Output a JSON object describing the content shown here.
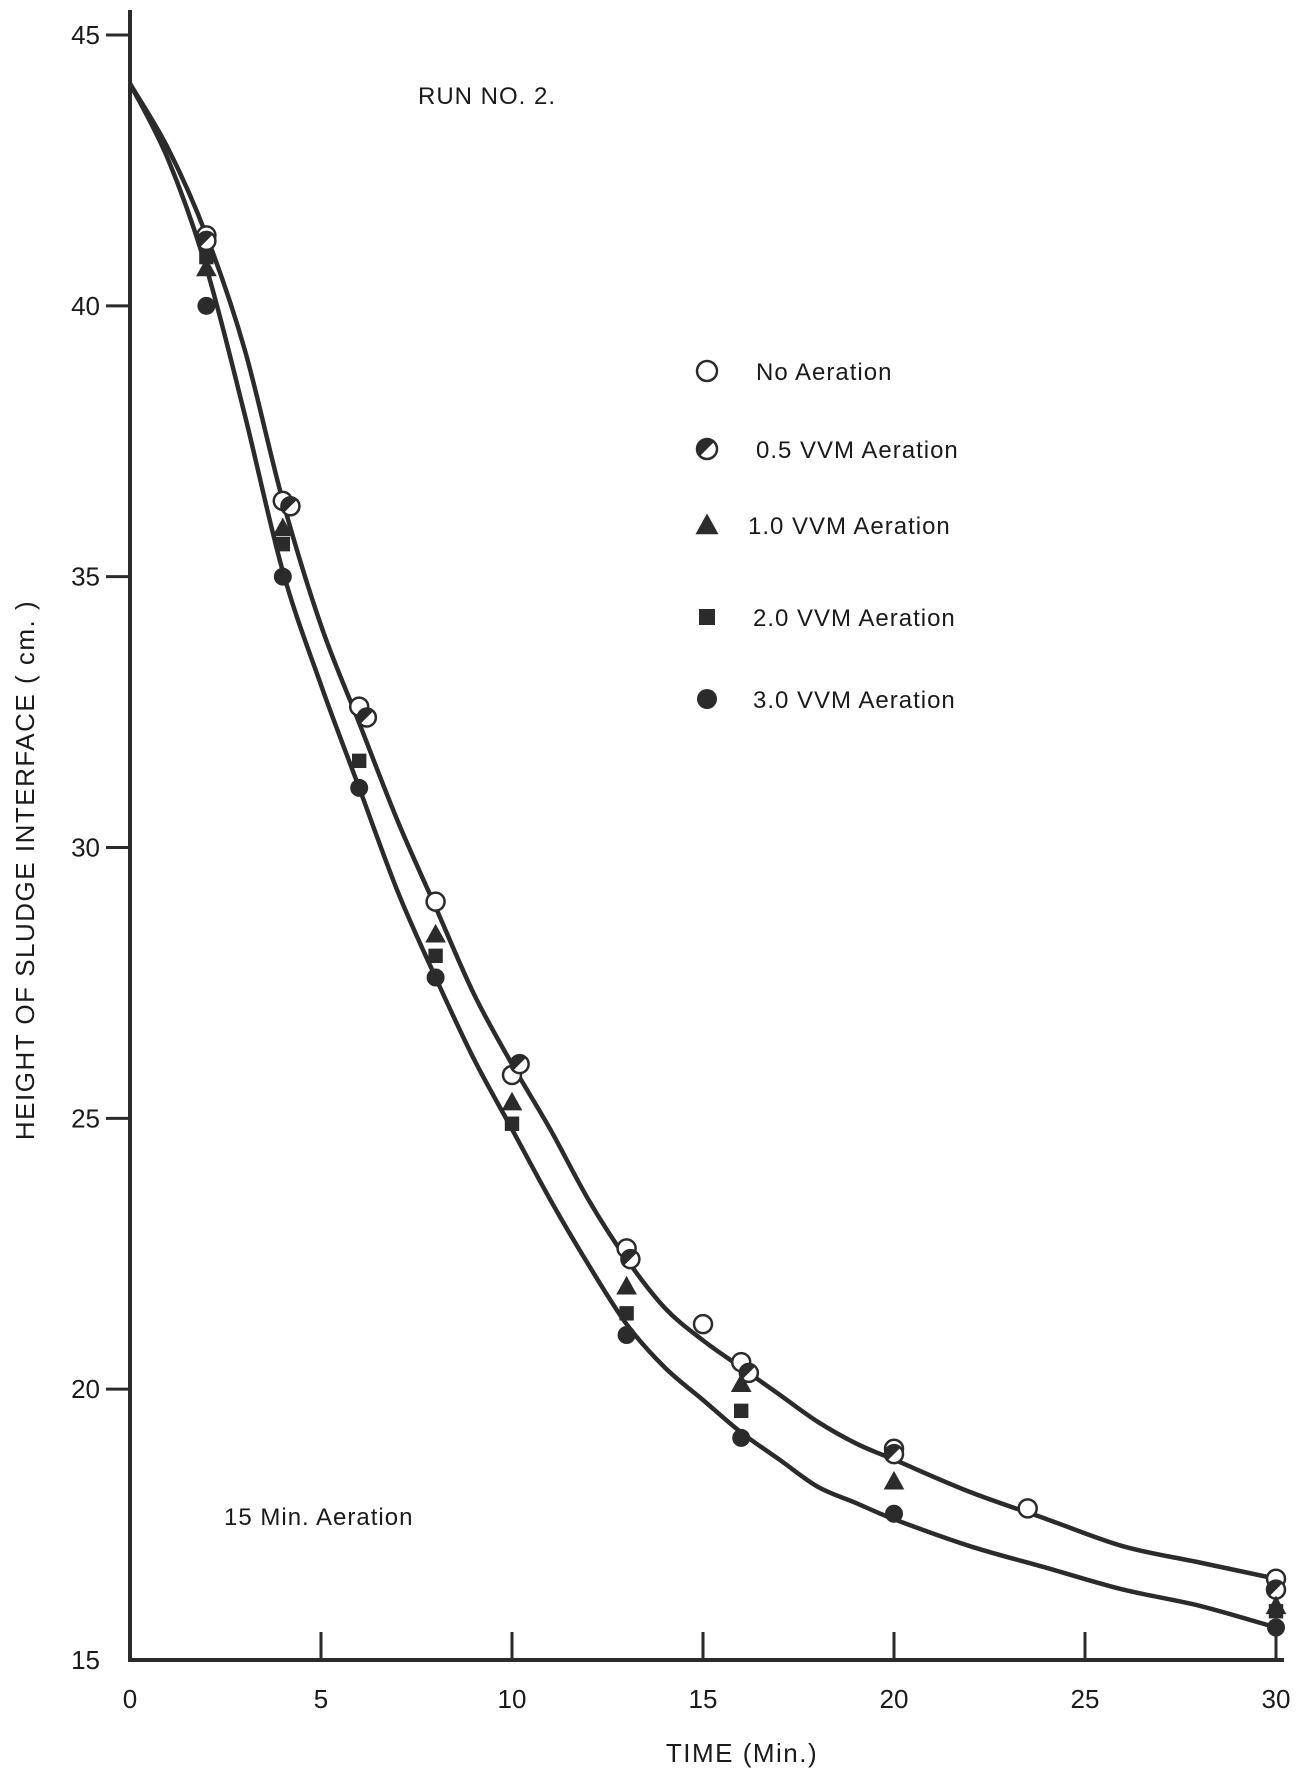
{
  "chart_data": {
    "type": "scatter",
    "title": "RUN NO. 2.",
    "annotation": "15 Min. Aeration",
    "xlabel": "TIME (Min.)",
    "ylabel": "HEIGHT OF SLUDGE INTERFACE ( cm. )",
    "xlim": [
      0,
      30
    ],
    "ylim": [
      15,
      45
    ],
    "x_ticks": [
      0,
      5,
      10,
      15,
      20,
      25,
      30
    ],
    "y_ticks": [
      15,
      20,
      25,
      30,
      35,
      40,
      45
    ],
    "grid": false,
    "legend_position": "right",
    "colors": {
      "ink": "#2b2b2b",
      "background": "#ffffff"
    },
    "series": [
      {
        "name": "No Aeration",
        "marker": "open-circle",
        "x": [
          2,
          4,
          6,
          8,
          10,
          13,
          15,
          16,
          20,
          23.5,
          30
        ],
        "y": [
          41.3,
          36.4,
          32.6,
          29.0,
          25.8,
          22.6,
          21.2,
          20.5,
          18.9,
          17.8,
          16.5
        ]
      },
      {
        "name": "0.5 VVM Aeration",
        "marker": "half-filled-circle",
        "x": [
          2,
          4.2,
          6.2,
          10.2,
          13.1,
          16.2,
          20,
          30
        ],
        "y": [
          41.2,
          36.3,
          32.4,
          26.0,
          22.4,
          20.3,
          18.8,
          16.3
        ]
      },
      {
        "name": "1.0 VVM Aeration",
        "marker": "filled-triangle",
        "x": [
          2,
          4,
          8,
          10,
          13,
          16,
          20,
          30
        ],
        "y": [
          40.7,
          35.9,
          28.4,
          25.3,
          21.9,
          20.1,
          18.3,
          16.0
        ]
      },
      {
        "name": "2.0 VVM Aeration",
        "marker": "filled-square",
        "x": [
          2,
          4,
          6,
          8,
          10,
          13,
          16,
          30
        ],
        "y": [
          40.9,
          35.6,
          31.6,
          28.0,
          24.9,
          21.4,
          19.6,
          15.9
        ]
      },
      {
        "name": "3.0 VVM Aeration",
        "marker": "filled-circle",
        "x": [
          2,
          4,
          6,
          8,
          13,
          16,
          20,
          30
        ],
        "y": [
          40.0,
          35.0,
          31.1,
          27.6,
          21.0,
          19.1,
          17.7,
          15.6
        ]
      }
    ],
    "fitted_curves": [
      {
        "x": [
          0,
          1,
          2,
          3,
          4,
          5,
          6,
          7,
          8,
          9,
          10,
          11,
          12,
          13,
          14,
          15,
          16,
          17,
          18,
          19,
          20,
          22,
          24,
          26,
          28,
          30
        ],
        "y": [
          44.1,
          42.9,
          41.3,
          39.2,
          36.4,
          34.1,
          32.3,
          30.5,
          28.9,
          27.3,
          26.0,
          24.8,
          23.5,
          22.4,
          21.5,
          20.9,
          20.4,
          19.9,
          19.4,
          19.0,
          18.7,
          18.1,
          17.6,
          17.1,
          16.8,
          16.5
        ]
      },
      {
        "x": [
          0,
          1,
          2,
          3,
          4,
          5,
          6,
          7,
          8,
          9,
          10,
          11,
          12,
          13,
          14,
          15,
          16,
          17,
          18,
          19,
          20,
          22,
          24,
          26,
          28,
          30
        ],
        "y": [
          44.1,
          42.7,
          40.7,
          38.0,
          35.1,
          33.0,
          31.1,
          29.2,
          27.6,
          26.1,
          24.8,
          23.5,
          22.3,
          21.2,
          20.4,
          19.8,
          19.2,
          18.7,
          18.2,
          17.9,
          17.6,
          17.1,
          16.7,
          16.3,
          16.0,
          15.6
        ]
      }
    ]
  }
}
